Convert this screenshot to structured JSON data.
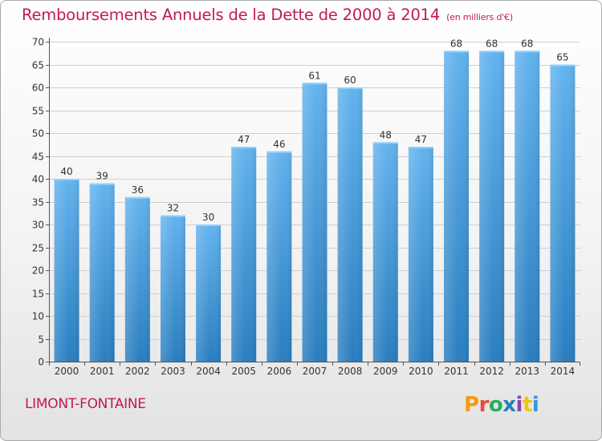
{
  "header": {
    "title": "Remboursements Annuels de la Dette de 2000 à 2014",
    "unit": "(en milliers d'€)"
  },
  "footer": {
    "commune": "LIMONT-FONTAINE",
    "logo_text": "Proxiti",
    "logo_colors": [
      "#f39c12",
      "#e74c3c",
      "#27ae60",
      "#2980b9",
      "#8e44ad",
      "#f1c40f",
      "#3498db"
    ]
  },
  "colors": {
    "bar_top": "#62b3ee",
    "bar_bottom": "#2a7dbf",
    "title": "#c2185b",
    "axis": "#555555"
  },
  "chart_data": {
    "type": "bar",
    "categories": [
      "2000",
      "2001",
      "2002",
      "2003",
      "2004",
      "2005",
      "2006",
      "2007",
      "2008",
      "2009",
      "2010",
      "2011",
      "2012",
      "2013",
      "2014"
    ],
    "values": [
      40,
      39,
      36,
      32,
      30,
      47,
      46,
      61,
      60,
      48,
      47,
      68,
      68,
      68,
      65
    ],
    "ylim": [
      0,
      70
    ],
    "yticks": [
      0,
      5,
      10,
      15,
      20,
      25,
      30,
      35,
      40,
      45,
      50,
      55,
      60,
      65,
      70
    ],
    "grid": "horizontal",
    "legend": "none",
    "data_labels": true
  }
}
